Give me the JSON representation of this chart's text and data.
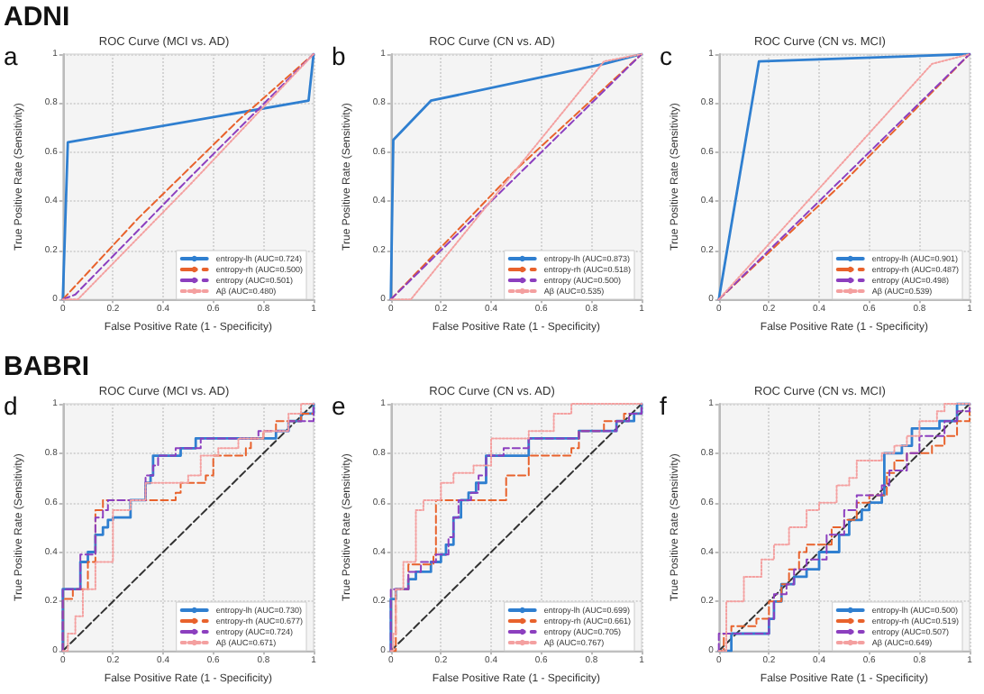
{
  "chart_data": [
    {
      "type": "line",
      "title": "ROC Curve (MCI vs. AD)",
      "annotations": [
        "ADNI",
        "a"
      ],
      "xlabel": "False Positive Rate (1 - Specificity)",
      "ylabel": "True Positive Rate (Sensitivity)",
      "xlim": [
        0,
        1
      ],
      "ylim": [
        0,
        1
      ],
      "xticks": [
        0,
        0.2,
        0.4,
        0.6,
        0.8,
        1
      ],
      "yticks": [
        0,
        0.2,
        0.4,
        0.6,
        0.8,
        1
      ],
      "grid": true,
      "legend": "bottom right",
      "marker": "none",
      "series": [
        {
          "name": "entropy-lh (AUC=0.724)",
          "color": "#2f7fd0",
          "line_style": "solid",
          "x": [
            0,
            0.02,
            0.98,
            1
          ],
          "values": [
            0,
            0.64,
            0.81,
            1
          ]
        },
        {
          "name": "entropy-rh (AUC=0.500)",
          "color": "#e8622c",
          "line_style": "dashed",
          "x": [
            0,
            0.3,
            0.7,
            1
          ],
          "values": [
            0,
            0.33,
            0.73,
            1
          ]
        },
        {
          "name": "entropy (AUC=0.501)",
          "color": "#8c3fbf",
          "line_style": "dashed",
          "x": [
            0,
            0.05,
            0.5,
            1
          ],
          "values": [
            0,
            0.02,
            0.49,
            1
          ]
        },
        {
          "name": "Aβ (AUC=0.480)",
          "color": "#f4a0a0",
          "line_style": "dotted",
          "x": [
            0,
            0.06,
            0.5,
            1
          ],
          "values": [
            0,
            0,
            0.46,
            1
          ]
        }
      ]
    },
    {
      "type": "line",
      "title": "ROC Curve (CN vs. AD)",
      "annotations": [
        "b"
      ],
      "xlabel": "False Positive Rate (1 - Specificity)",
      "ylabel": "True Positive Rate (Sensitivity)",
      "xlim": [
        0,
        1
      ],
      "ylim": [
        0,
        1
      ],
      "xticks": [
        0,
        0.2,
        0.4,
        0.6,
        0.8,
        1
      ],
      "yticks": [
        0,
        0.2,
        0.4,
        0.6,
        0.8,
        1
      ],
      "grid": true,
      "legend": "bottom right",
      "marker": "none",
      "series": [
        {
          "name": "entropy-lh (AUC=0.873)",
          "color": "#2f7fd0",
          "line_style": "solid",
          "x": [
            0,
            0.01,
            0.16,
            0.85,
            1
          ],
          "values": [
            0,
            0.65,
            0.81,
            0.96,
            1
          ]
        },
        {
          "name": "entropy-rh (AUC=0.518)",
          "color": "#e8622c",
          "line_style": "dashed",
          "x": [
            0,
            0.5,
            1
          ],
          "values": [
            0,
            0.53,
            1
          ]
        },
        {
          "name": "entropy (AUC=0.500)",
          "color": "#8c3fbf",
          "line_style": "dashed",
          "x": [
            0,
            0.5,
            1
          ],
          "values": [
            0,
            0.5,
            1
          ]
        },
        {
          "name": "Aβ (AUC=0.535)",
          "color": "#f4a0a0",
          "line_style": "dotted",
          "x": [
            0,
            0.08,
            0.85,
            1
          ],
          "values": [
            0,
            0,
            0.97,
            1
          ]
        }
      ]
    },
    {
      "type": "line",
      "title": "ROC Curve (CN vs. MCI)",
      "annotations": [
        "c"
      ],
      "xlabel": "False Positive Rate (1 - Specificity)",
      "ylabel": "True Positive Rate (Sensitivity)",
      "xlim": [
        0,
        1
      ],
      "ylim": [
        0,
        1
      ],
      "xticks": [
        0,
        0.2,
        0.4,
        0.6,
        0.8,
        1
      ],
      "yticks": [
        0,
        0.2,
        0.4,
        0.6,
        0.8,
        1
      ],
      "grid": true,
      "legend": "bottom right",
      "marker": "none",
      "series": [
        {
          "name": "entropy-lh (AUC=0.901)",
          "color": "#2f7fd0",
          "line_style": "solid",
          "x": [
            0,
            0.16,
            1
          ],
          "values": [
            0,
            0.97,
            1
          ]
        },
        {
          "name": "entropy-rh (AUC=0.487)",
          "color": "#e8622c",
          "line_style": "dashed",
          "x": [
            0,
            0.5,
            1
          ],
          "values": [
            0,
            0.48,
            1
          ]
        },
        {
          "name": "entropy (AUC=0.498)",
          "color": "#8c3fbf",
          "line_style": "dashed",
          "x": [
            0,
            0.5,
            1
          ],
          "values": [
            0,
            0.5,
            1
          ]
        },
        {
          "name": "Aβ (AUC=0.539)",
          "color": "#f4a0a0",
          "line_style": "dotted",
          "x": [
            0,
            0.85,
            1
          ],
          "values": [
            0,
            0.96,
            1
          ]
        }
      ]
    },
    {
      "type": "step",
      "title": "ROC Curve (MCI vs. AD)",
      "annotations": [
        "BABRI",
        "d"
      ],
      "xlabel": "False Positive Rate (1 - Specificity)",
      "ylabel": "True Positive Rate (Sensitivity)",
      "xlim": [
        0,
        1
      ],
      "ylim": [
        0,
        1
      ],
      "xticks": [
        0,
        0.2,
        0.4,
        0.6,
        0.8,
        1
      ],
      "yticks": [
        0,
        0.2,
        0.4,
        0.6,
        0.8,
        1
      ],
      "grid": true,
      "legend": "bottom right",
      "marker": "none",
      "series": [
        {
          "name": "entropy-lh (AUC=0.730)",
          "color": "#2f7fd0",
          "line_style": "solid",
          "x": [
            0,
            0,
            0.07,
            0.1,
            0.13,
            0.16,
            0.18,
            0.2,
            0.27,
            0.33,
            0.35,
            0.36,
            0.47,
            0.53,
            0.8,
            0.85,
            0.9,
            0.95,
            1
          ],
          "values": [
            0,
            0.25,
            0.36,
            0.4,
            0.47,
            0.5,
            0.53,
            0.54,
            0.61,
            0.68,
            0.71,
            0.79,
            0.82,
            0.86,
            0.86,
            0.89,
            0.93,
            0.96,
            1
          ]
        },
        {
          "name": "entropy-rh (AUC=0.677)",
          "color": "#e8622c",
          "line_style": "dashed",
          "x": [
            0,
            0,
            0.04,
            0.1,
            0.13,
            0.16,
            0.45,
            0.47,
            0.57,
            0.6,
            0.73,
            0.75,
            0.8,
            0.85,
            0.95,
            1
          ],
          "values": [
            0,
            0.21,
            0.25,
            0.36,
            0.57,
            0.61,
            0.64,
            0.68,
            0.71,
            0.79,
            0.82,
            0.86,
            0.89,
            0.93,
            0.96,
            1
          ]
        },
        {
          "name": "entropy (AUC=0.724)",
          "color": "#8c3fbf",
          "line_style": "dashed",
          "x": [
            0,
            0,
            0.07,
            0.13,
            0.16,
            0.18,
            0.33,
            0.36,
            0.38,
            0.45,
            0.55,
            0.78,
            0.9,
            1,
            1
          ],
          "values": [
            0,
            0.25,
            0.39,
            0.54,
            0.57,
            0.61,
            0.71,
            0.75,
            0.79,
            0.82,
            0.86,
            0.89,
            0.93,
            0.96,
            1
          ]
        },
        {
          "name": "Aβ (AUC=0.671)",
          "color": "#f4a0a0",
          "line_style": "dotted",
          "x": [
            0,
            0.02,
            0.05,
            0.08,
            0.13,
            0.2,
            0.27,
            0.33,
            0.5,
            0.55,
            0.62,
            0.7,
            0.8,
            0.9,
            0.95,
            1
          ],
          "values": [
            0,
            0.07,
            0.14,
            0.25,
            0.36,
            0.57,
            0.61,
            0.68,
            0.71,
            0.79,
            0.82,
            0.86,
            0.89,
            0.96,
            1,
            1
          ]
        },
        {
          "type": "line",
          "color": "#333333",
          "line_style": "dashed",
          "x": [
            0,
            1
          ],
          "values": [
            0,
            1
          ]
        }
      ]
    },
    {
      "type": "step",
      "title": "ROC Curve (CN vs. AD)",
      "annotations": [
        "e"
      ],
      "xlabel": "False Positive Rate (1 - Specificity)",
      "ylabel": "True Positive Rate (Sensitivity)",
      "xlim": [
        0,
        1
      ],
      "ylim": [
        0,
        1
      ],
      "xticks": [
        0,
        0.2,
        0.4,
        0.6,
        0.8,
        1
      ],
      "yticks": [
        0,
        0.2,
        0.4,
        0.6,
        0.8,
        1
      ],
      "grid": true,
      "legend": "bottom right",
      "marker": "none",
      "series": [
        {
          "name": "entropy-lh (AUC=0.699)",
          "color": "#2f7fd0",
          "line_style": "solid",
          "x": [
            0,
            0,
            0.02,
            0.07,
            0.1,
            0.16,
            0.2,
            0.22,
            0.25,
            0.28,
            0.31,
            0.34,
            0.38,
            0.55,
            0.75,
            0.9,
            0.97,
            1
          ],
          "values": [
            0,
            0.21,
            0.25,
            0.29,
            0.32,
            0.36,
            0.39,
            0.43,
            0.54,
            0.61,
            0.64,
            0.68,
            0.79,
            0.86,
            0.89,
            0.93,
            0.96,
            1
          ]
        },
        {
          "name": "entropy-rh (AUC=0.661)",
          "color": "#e8622c",
          "line_style": "dashed",
          "x": [
            0,
            0.02,
            0.07,
            0.17,
            0.18,
            0.45,
            0.46,
            0.55,
            0.72,
            0.75,
            0.85,
            0.93,
            1
          ],
          "values": [
            0,
            0.25,
            0.35,
            0.39,
            0.61,
            0.61,
            0.71,
            0.79,
            0.82,
            0.89,
            0.93,
            0.96,
            1
          ]
        },
        {
          "name": "entropy (AUC=0.705)",
          "color": "#8c3fbf",
          "line_style": "dashed",
          "x": [
            0,
            0,
            0.07,
            0.12,
            0.18,
            0.23,
            0.25,
            0.27,
            0.32,
            0.35,
            0.38,
            0.45,
            0.55,
            0.75,
            0.9,
            0.95,
            1
          ],
          "values": [
            0,
            0.25,
            0.32,
            0.36,
            0.39,
            0.46,
            0.54,
            0.61,
            0.64,
            0.71,
            0.79,
            0.82,
            0.86,
            0.89,
            0.93,
            0.96,
            1
          ]
        },
        {
          "name": "Aβ (AUC=0.767)",
          "color": "#f4a0a0",
          "line_style": "dotted",
          "x": [
            0,
            0.01,
            0.02,
            0.05,
            0.1,
            0.13,
            0.2,
            0.25,
            0.33,
            0.4,
            0.55,
            0.65,
            0.72,
            1
          ],
          "values": [
            0,
            0.07,
            0.25,
            0.36,
            0.57,
            0.61,
            0.68,
            0.72,
            0.75,
            0.86,
            0.89,
            0.96,
            1,
            1
          ]
        },
        {
          "type": "line",
          "color": "#333333",
          "line_style": "dashed",
          "x": [
            0,
            1
          ],
          "values": [
            0,
            1
          ]
        }
      ]
    },
    {
      "type": "step",
      "title": "ROC Curve (CN vs. MCI)",
      "annotations": [
        "f"
      ],
      "xlabel": "False Positive Rate (1 - Specificity)",
      "ylabel": "True Positive Rate (Sensitivity)",
      "xlim": [
        0,
        1
      ],
      "ylim": [
        0,
        1
      ],
      "xticks": [
        0,
        0.2,
        0.4,
        0.6,
        0.8,
        1
      ],
      "yticks": [
        0,
        0.2,
        0.4,
        0.6,
        0.8,
        1
      ],
      "grid": true,
      "legend": "bottom right",
      "marker": "none",
      "series": [
        {
          "name": "entropy-lh (AUC=0.500)",
          "color": "#2f7fd0",
          "line_style": "solid",
          "x": [
            0,
            0.05,
            0.2,
            0.22,
            0.25,
            0.3,
            0.35,
            0.4,
            0.48,
            0.52,
            0.57,
            0.6,
            0.65,
            0.66,
            0.73,
            0.77,
            0.88,
            0.95,
            1
          ],
          "values": [
            0,
            0.07,
            0.13,
            0.2,
            0.27,
            0.3,
            0.33,
            0.4,
            0.47,
            0.53,
            0.57,
            0.6,
            0.63,
            0.8,
            0.83,
            0.9,
            0.93,
            1,
            1
          ]
        },
        {
          "name": "entropy-rh (AUC=0.519)",
          "color": "#e8622c",
          "line_style": "dashed",
          "x": [
            0,
            0.02,
            0.05,
            0.15,
            0.2,
            0.25,
            0.28,
            0.32,
            0.35,
            0.45,
            0.5,
            0.55,
            0.6,
            0.67,
            0.7,
            0.75,
            0.85,
            0.9,
            0.95,
            1
          ],
          "values": [
            0,
            0.07,
            0.1,
            0.13,
            0.2,
            0.27,
            0.33,
            0.4,
            0.43,
            0.5,
            0.53,
            0.6,
            0.63,
            0.72,
            0.77,
            0.8,
            0.83,
            0.87,
            0.93,
            1
          ]
        },
        {
          "name": "entropy (AUC=0.507)",
          "color": "#8c3fbf",
          "line_style": "dashed",
          "x": [
            0,
            0,
            0.2,
            0.22,
            0.27,
            0.3,
            0.35,
            0.43,
            0.5,
            0.55,
            0.65,
            0.68,
            0.75,
            0.8,
            0.9,
            0.95,
            1
          ],
          "values": [
            0,
            0.07,
            0.13,
            0.23,
            0.27,
            0.33,
            0.37,
            0.47,
            0.57,
            0.63,
            0.67,
            0.73,
            0.8,
            0.87,
            0.93,
            0.97,
            1
          ]
        },
        {
          "name": "Aβ (AUC=0.649)",
          "color": "#f4a0a0",
          "line_style": "dotted",
          "x": [
            0,
            0.03,
            0.1,
            0.17,
            0.22,
            0.28,
            0.35,
            0.4,
            0.47,
            0.52,
            0.55,
            0.65,
            0.7,
            0.75,
            0.8,
            0.87,
            0.9,
            1
          ],
          "values": [
            0,
            0.2,
            0.3,
            0.37,
            0.43,
            0.5,
            0.57,
            0.6,
            0.67,
            0.7,
            0.77,
            0.8,
            0.83,
            0.87,
            0.93,
            0.97,
            1,
            1
          ]
        },
        {
          "type": "line",
          "color": "#333333",
          "line_style": "dashed",
          "x": [
            0,
            1
          ],
          "values": [
            0,
            1
          ]
        }
      ]
    }
  ]
}
